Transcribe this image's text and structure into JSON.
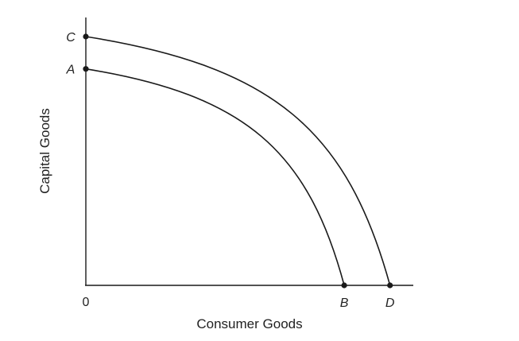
{
  "chart_data": {
    "type": "line",
    "title": "",
    "xlabel": "Consumer Goods",
    "ylabel": "Capital Goods",
    "origin_label": "0",
    "grid": false,
    "xlim": [
      0,
      10
    ],
    "ylim": [
      0,
      10
    ],
    "series": [
      {
        "start_label": "A",
        "end_label": "B",
        "y_intercept": 8.7,
        "x_intercept": 7.9
      },
      {
        "start_label": "C",
        "end_label": "D",
        "y_intercept": 10.0,
        "x_intercept": 9.3
      }
    ]
  }
}
